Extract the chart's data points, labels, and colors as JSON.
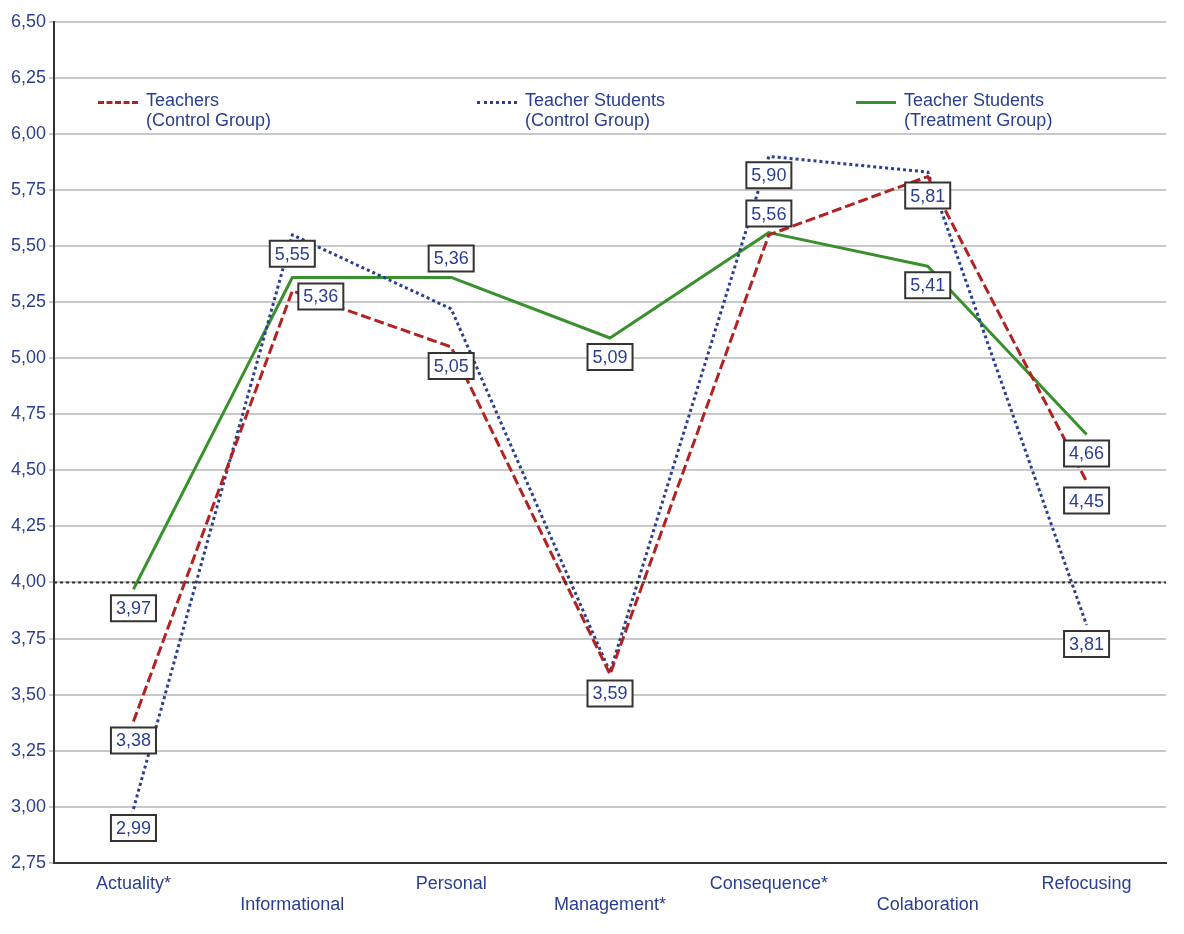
{
  "chart_data": {
    "type": "line",
    "categories": [
      "Actuality*",
      "Informational",
      "Personal",
      "Management*",
      "Consequence*",
      "Colaboration",
      "Refocusing"
    ],
    "series": [
      {
        "name": "Teachers\n(Control Group)",
        "color": "#b22222",
        "line_style": "dashed",
        "values": [
          3.38,
          5.3,
          5.05,
          3.59,
          5.55,
          5.81,
          4.45
        ],
        "value_labels": [
          "3,38",
          null,
          "5,05",
          "3,59",
          null,
          "5,81",
          "4,45"
        ]
      },
      {
        "name": "Teacher Students\n(Control Group)",
        "color": "#2a3f8f",
        "line_style": "dotted",
        "values": [
          2.99,
          5.55,
          5.22,
          3.6,
          5.9,
          5.83,
          3.81
        ],
        "value_labels": [
          "2,99",
          "5,55",
          null,
          null,
          "5,90",
          null,
          "3,81"
        ]
      },
      {
        "name": "Teacher Students\n(Treatment Group)",
        "color": "#3a8f2e",
        "line_style": "solid",
        "values": [
          3.97,
          5.36,
          5.36,
          5.09,
          5.56,
          5.41,
          4.66
        ],
        "value_labels": [
          "3,97",
          "5,36",
          "5,36",
          "5,09",
          "5,56",
          "5,41",
          "4,66"
        ]
      }
    ],
    "ylim": [
      2.75,
      6.5
    ],
    "yticks": [
      {
        "value": 2.75,
        "label": "2,75"
      },
      {
        "value": 3,
        "label": "3,00"
      },
      {
        "value": 3.25,
        "label": "3,25"
      },
      {
        "value": 3.5,
        "label": "3,50"
      },
      {
        "value": 3.75,
        "label": "3,75"
      },
      {
        "value": 4,
        "label": "4,00"
      },
      {
        "value": 4.25,
        "label": "4,25"
      },
      {
        "value": 4.5,
        "label": "4,50"
      },
      {
        "value": 4.75,
        "label": "4,75"
      },
      {
        "value": 5,
        "label": "5,00"
      },
      {
        "value": 5.25,
        "label": "5,25"
      },
      {
        "value": 5.5,
        "label": "5,50"
      },
      {
        "value": 5.75,
        "label": "5,75"
      },
      {
        "value": 6,
        "label": "6,00"
      },
      {
        "value": 6.25,
        "label": "6,25"
      },
      {
        "value": 6.5,
        "label": "6,50"
      }
    ],
    "ref_lines": [
      {
        "axis": "y",
        "value": 4,
        "color": "#333333",
        "line_style": "dotted"
      }
    ],
    "grid": "y",
    "legend": "top",
    "marker": "none"
  }
}
